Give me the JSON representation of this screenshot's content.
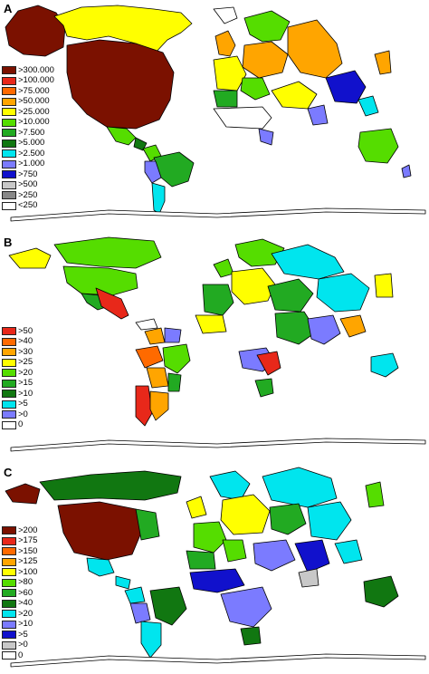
{
  "panels": [
    {
      "label": "A",
      "legend": [
        {
          "label": ">300.000",
          "color": "#7b1100"
        },
        {
          "label": ">100.000",
          "color": "#e8281a"
        },
        {
          "label": ">75.000",
          "color": "#ff6a00"
        },
        {
          "label": ">50.000",
          "color": "#ffa500"
        },
        {
          "label": ">25.000",
          "color": "#ffff00"
        },
        {
          "label": ">10.000",
          "color": "#55dd00"
        },
        {
          "label": ">7.500",
          "color": "#22aa22"
        },
        {
          "label": ">5.000",
          "color": "#117711"
        },
        {
          "label": ">2.500",
          "color": "#00e5ee"
        },
        {
          "label": ">1.000",
          "color": "#7b7bff"
        },
        {
          "label": ">750",
          "color": "#1111cc"
        },
        {
          "label": ">500",
          "color": "#c8c8c8"
        },
        {
          "label": ">250",
          "color": "#888888"
        },
        {
          "label": "<250",
          "color": "#ffffff"
        }
      ]
    },
    {
      "label": "B",
      "legend": [
        {
          "label": ">50",
          "color": "#e8281a"
        },
        {
          "label": ">40",
          "color": "#ff6a00"
        },
        {
          "label": ">30",
          "color": "#ffa500"
        },
        {
          "label": ">25",
          "color": "#ffff00"
        },
        {
          "label": ">20",
          "color": "#55dd00"
        },
        {
          "label": ">15",
          "color": "#22aa22"
        },
        {
          "label": ">10",
          "color": "#117711"
        },
        {
          "label": ">5",
          "color": "#00e5ee"
        },
        {
          "label": ">0",
          "color": "#7b7bff"
        },
        {
          "label": "0",
          "color": "#ffffff"
        }
      ]
    },
    {
      "label": "C",
      "legend": [
        {
          "label": ">200",
          "color": "#7b1100"
        },
        {
          "label": ">175",
          "color": "#e8281a"
        },
        {
          "label": ">150",
          "color": "#ff6a00"
        },
        {
          "label": ">125",
          "color": "#ffa500"
        },
        {
          "label": ">100",
          "color": "#ffff00"
        },
        {
          "label": ">80",
          "color": "#55dd00"
        },
        {
          "label": ">60",
          "color": "#22aa22"
        },
        {
          "label": ">40",
          "color": "#117711"
        },
        {
          "label": ">20",
          "color": "#00e5ee"
        },
        {
          "label": ">10",
          "color": "#7b7bff"
        },
        {
          "label": ">5",
          "color": "#1111cc"
        },
        {
          "label": ">0",
          "color": "#c8c8c8"
        },
        {
          "label": "0",
          "color": "#ffffff"
        }
      ]
    }
  ]
}
